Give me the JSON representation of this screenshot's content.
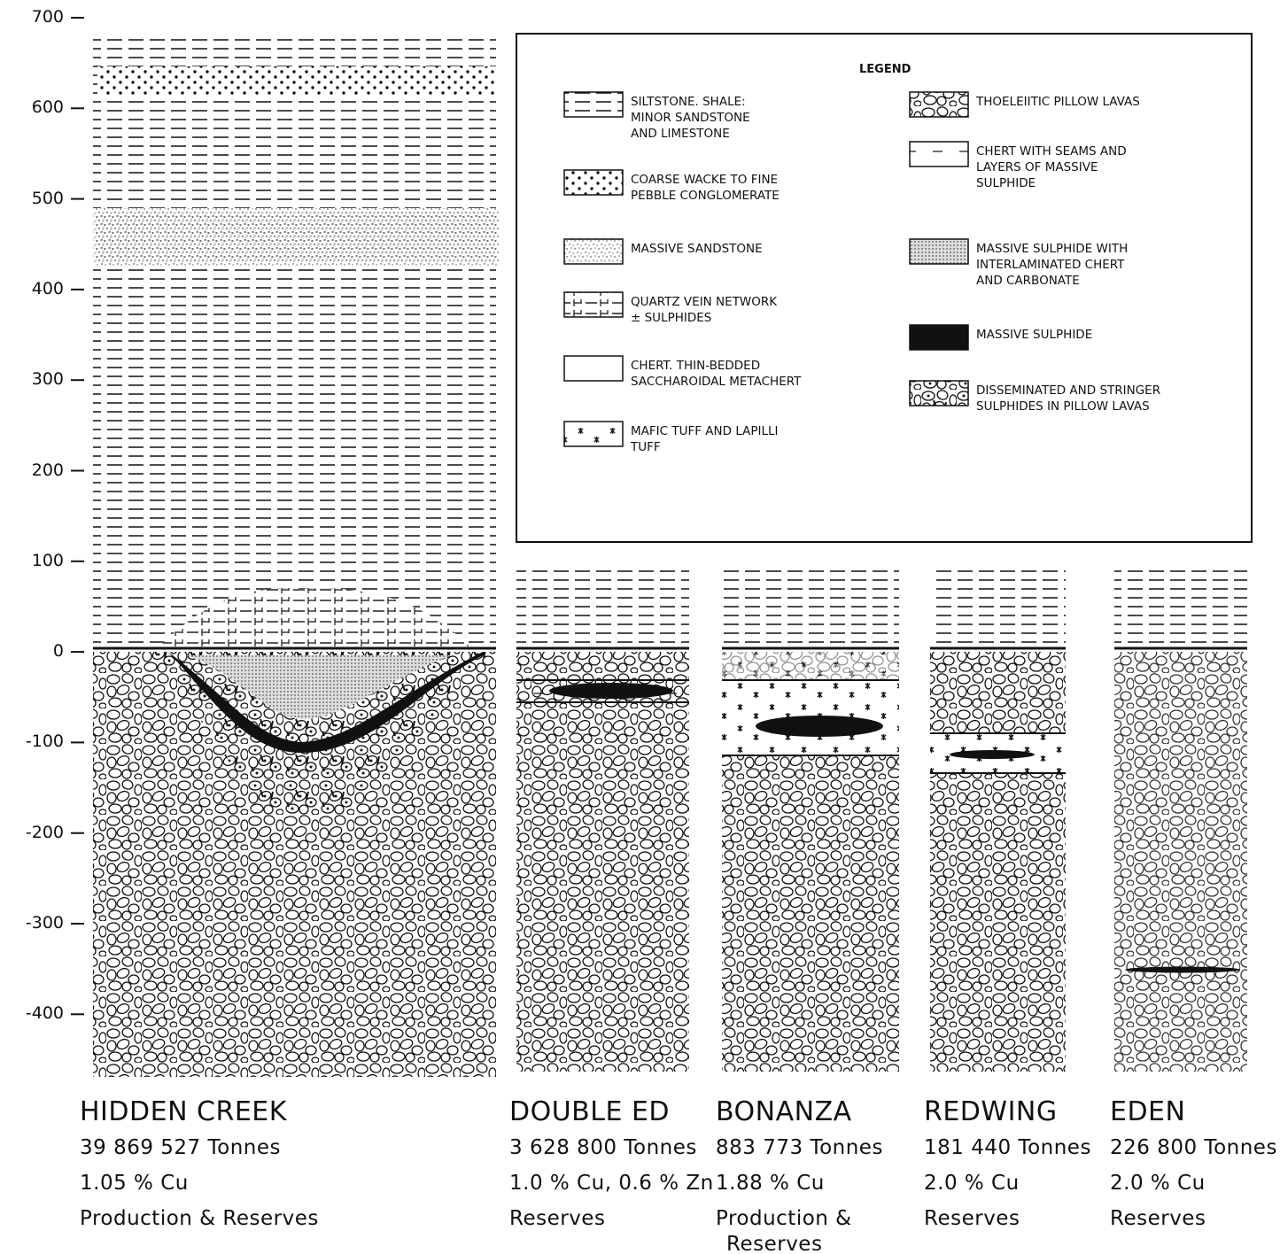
{
  "axis": {
    "ticks": [
      "700",
      "600",
      "500",
      "400",
      "300",
      "200",
      "100",
      "0",
      "-100",
      "-200",
      "-300",
      "-400"
    ]
  },
  "legend": {
    "title": "LEGEND",
    "items": [
      {
        "lines": [
          "SILTSTONE. SHALE:",
          "MINOR SANDSTONE",
          "AND LIMESTONE"
        ]
      },
      {
        "lines": [
          "COARSE WACKE TO FINE",
          "PEBBLE CONGLOMERATE"
        ]
      },
      {
        "lines": [
          "MASSIVE SANDSTONE"
        ]
      },
      {
        "lines": [
          "QUARTZ VEIN NETWORK",
          "± SULPHIDES"
        ]
      },
      {
        "lines": [
          "CHERT. THIN-BEDDED",
          "SACCHAROIDAL METACHERT"
        ]
      },
      {
        "lines": [
          "MAFIC TUFF AND LAPILLI",
          "TUFF"
        ]
      },
      {
        "lines": [
          "THOELEIITIC PILLOW LAVAS"
        ]
      },
      {
        "lines": [
          "CHERT WITH SEAMS AND",
          "LAYERS OF MASSIVE",
          "SULPHIDE"
        ]
      },
      {
        "lines": [
          "MASSIVE SULPHIDE WITH",
          "INTERLAMINATED CHERT",
          "AND CARBONATE"
        ]
      },
      {
        "lines": [
          "MASSIVE SULPHIDE"
        ]
      },
      {
        "lines": [
          "DISSEMINATED  AND  STRINGER",
          "SULPHIDES IN PILLOW LAVAS"
        ]
      }
    ]
  },
  "columns": [
    {
      "name": "HIDDEN  CREEK",
      "lines": [
        "39 869 527  Tonnes",
        "1.05 % Cu",
        "Production & Reserves"
      ]
    },
    {
      "name": "DOUBLE ED",
      "lines": [
        "3 628 800 Tonnes",
        "1.0 % Cu, 0.6 % Zn",
        "Reserves"
      ]
    },
    {
      "name": "BONANZA",
      "lines": [
        "883 773 Tonnes",
        "1.88 % Cu",
        "Production &",
        "Reserves"
      ]
    },
    {
      "name": "REDWING",
      "lines": [
        "181 440 Tonnes",
        "2.0 % Cu",
        "Reserves"
      ]
    },
    {
      "name": "EDEN",
      "lines": [
        "226 800 Tonnes",
        "2.0 % Cu",
        "Reserves"
      ]
    }
  ]
}
